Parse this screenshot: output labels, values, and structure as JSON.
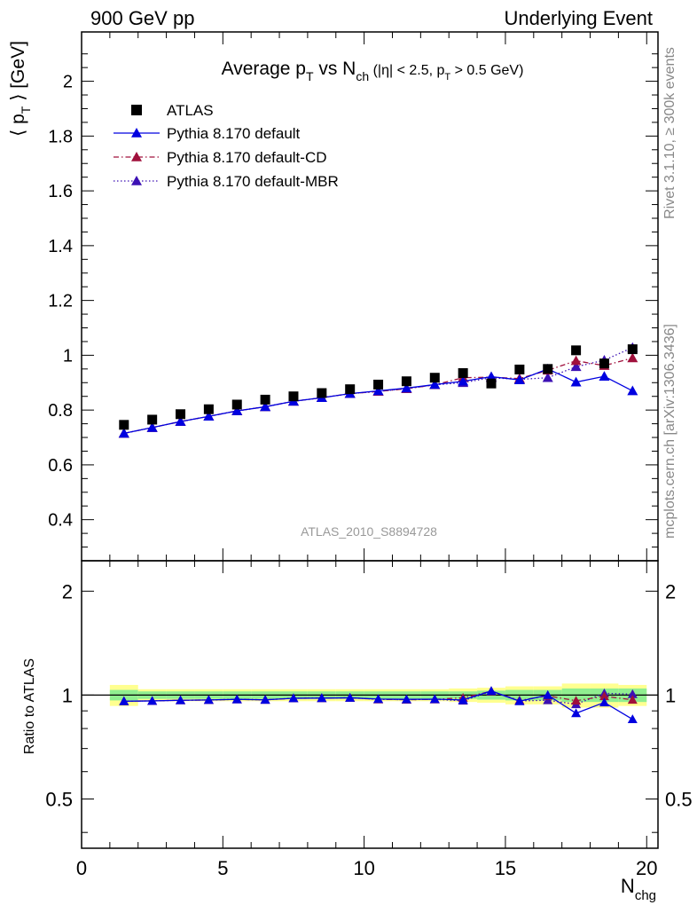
{
  "header": {
    "left": "900 GeV pp",
    "right": "Underlying Event"
  },
  "side_labels": {
    "rivet": "Rivet 3.1.10, ≥ 300k events",
    "mcplots": "mcplots.cern.ch [arXiv:1306.3436]"
  },
  "colors": {
    "atlas": "#000000",
    "default": "#0000e0",
    "cd": "#a0103c",
    "mbr": "#3c10b4",
    "band_green": "#90ee90",
    "band_yellow": "#ffff90"
  },
  "chart_data": [
    {
      "type": "scatter",
      "title": "Average pT vs Nch (|η| < 2.5, pT > 0.5 GeV)",
      "analysis_label": "ATLAS_2010_S8894728",
      "ylabel": "⟨ pT ⟩ [GeV]",
      "xlim": [
        0,
        20.4
      ],
      "ylim": [
        0.25,
        2.18
      ],
      "yticks": [
        "0.4",
        "0.6",
        "0.8",
        "1",
        "1.2",
        "1.4",
        "1.6",
        "1.8",
        "2"
      ],
      "legend_position": "top-left",
      "x": [
        1.5,
        2.5,
        3.5,
        4.5,
        5.5,
        6.5,
        7.5,
        8.5,
        9.5,
        10.5,
        11.5,
        12.5,
        13.5,
        14.5,
        15.5,
        16.5,
        17.5,
        18.5,
        19.5
      ],
      "series": [
        {
          "name": "ATLAS",
          "marker": "square",
          "values": [
            0.746,
            0.765,
            0.785,
            0.803,
            0.82,
            0.838,
            0.85,
            0.862,
            0.876,
            0.893,
            0.905,
            0.918,
            0.935,
            0.897,
            0.948,
            0.95,
            1.018,
            0.97,
            1.022
          ]
        },
        {
          "name": "Pythia 8.170 default",
          "marker": "triangle",
          "line": "solid",
          "values": [
            0.715,
            0.736,
            0.758,
            0.777,
            0.797,
            0.812,
            0.832,
            0.845,
            0.86,
            0.87,
            0.88,
            0.893,
            0.905,
            0.922,
            0.91,
            0.95,
            0.902,
            0.923,
            0.87
          ]
        },
        {
          "name": "Pythia 8.170 default-CD",
          "marker": "triangle",
          "line": "dashdot",
          "values": [
            0.715,
            0.736,
            0.758,
            0.777,
            0.797,
            0.812,
            0.832,
            0.845,
            0.86,
            0.868,
            0.878,
            0.892,
            0.918,
            0.92,
            0.915,
            0.945,
            0.98,
            0.962,
            0.99
          ]
        },
        {
          "name": "Pythia 8.170 default-MBR",
          "marker": "triangle",
          "line": "dotted",
          "values": [
            0.715,
            0.736,
            0.758,
            0.777,
            0.797,
            0.812,
            0.832,
            0.845,
            0.86,
            0.868,
            0.878,
            0.892,
            0.9,
            0.918,
            0.912,
            0.918,
            0.958,
            0.982,
            1.028
          ]
        }
      ]
    },
    {
      "type": "scatter",
      "ylabel": "Ratio to ATLAS",
      "xlabel": "Nchg",
      "xlim": [
        0,
        20.4
      ],
      "ylim": [
        0.36,
        2.45
      ],
      "y_scale": "log",
      "yticks": [
        "0.5",
        "1",
        "2"
      ],
      "xticks": [
        "0",
        "5",
        "10",
        "15",
        "20"
      ],
      "x": [
        1.5,
        2.5,
        3.5,
        4.5,
        5.5,
        6.5,
        7.5,
        8.5,
        9.5,
        10.5,
        11.5,
        12.5,
        13.5,
        14.5,
        15.5,
        16.5,
        17.5,
        18.5,
        19.5
      ],
      "band_green_halfwidth": [
        0.035,
        0.025,
        0.025,
        0.025,
        0.025,
        0.025,
        0.025,
        0.025,
        0.025,
        0.025,
        0.025,
        0.025,
        0.025,
        0.03,
        0.035,
        0.035,
        0.045,
        0.045,
        0.045
      ],
      "band_yellow_halfwidth": [
        0.07,
        0.04,
        0.04,
        0.04,
        0.04,
        0.04,
        0.04,
        0.04,
        0.04,
        0.04,
        0.04,
        0.04,
        0.045,
        0.05,
        0.06,
        0.06,
        0.08,
        0.08,
        0.07
      ],
      "series": [
        {
          "name": "Pythia 8.170 default",
          "values": [
            0.96,
            0.962,
            0.966,
            0.968,
            0.972,
            0.969,
            0.979,
            0.98,
            0.982,
            0.974,
            0.972,
            0.973,
            0.968,
            1.028,
            0.96,
            1.0,
            0.886,
            0.952,
            0.851
          ]
        },
        {
          "name": "Pythia 8.170 default-CD",
          "values": [
            0.96,
            0.962,
            0.966,
            0.968,
            0.972,
            0.969,
            0.979,
            0.98,
            0.982,
            0.972,
            0.97,
            0.972,
            0.982,
            1.026,
            0.965,
            0.995,
            0.963,
            0.992,
            0.969
          ]
        },
        {
          "name": "Pythia 8.170 default-MBR",
          "values": [
            0.96,
            0.962,
            0.966,
            0.968,
            0.972,
            0.969,
            0.979,
            0.98,
            0.982,
            0.972,
            0.97,
            0.972,
            0.963,
            1.024,
            0.962,
            0.966,
            0.941,
            1.012,
            1.006
          ]
        }
      ]
    }
  ]
}
